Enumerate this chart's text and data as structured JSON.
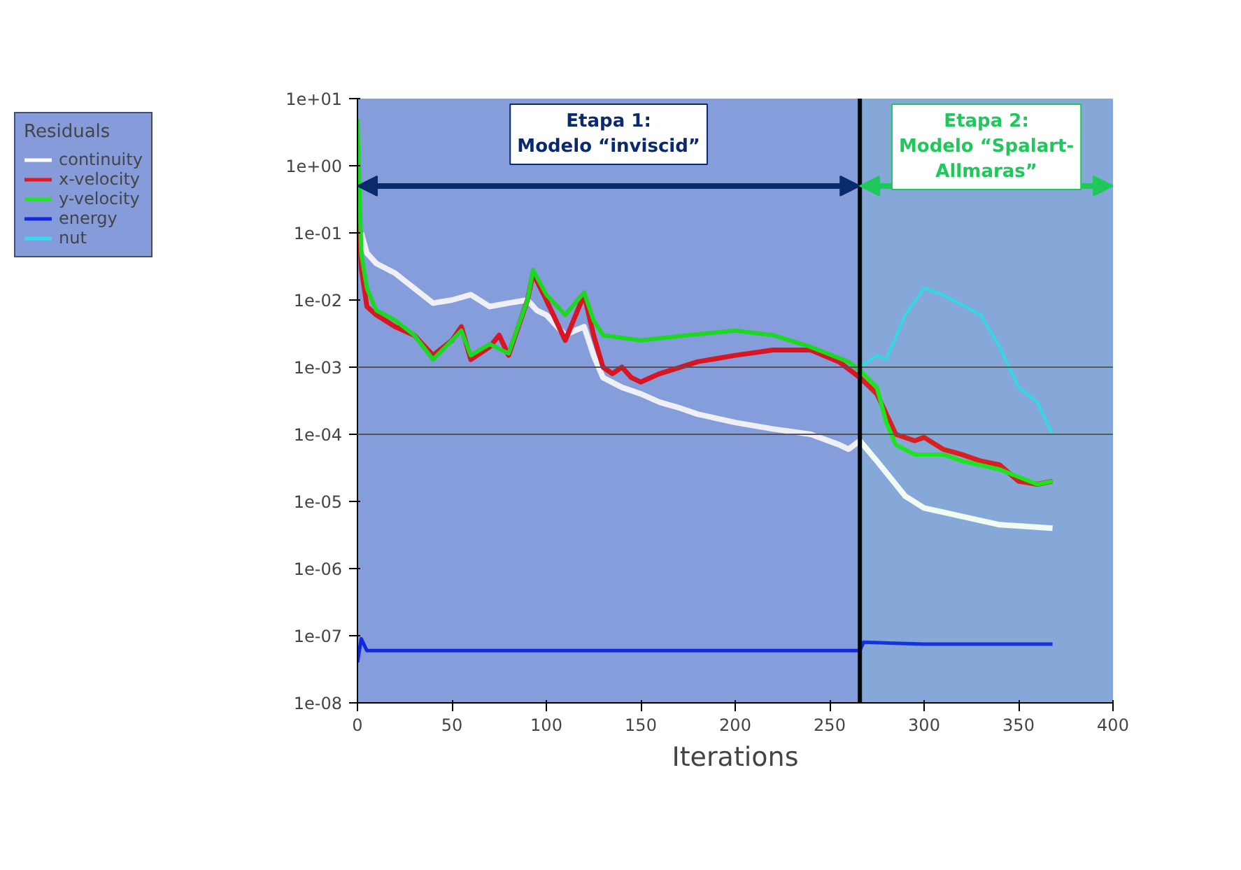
{
  "chart_data": {
    "type": "line",
    "xlabel": "Iterations",
    "legend_title": "Residuals",
    "legend": "top left",
    "log": "y",
    "grid": false,
    "xlim": [
      0,
      400
    ],
    "xticks": [
      0,
      50,
      100,
      150,
      200,
      250,
      300,
      350,
      400
    ],
    "ylim": [
      1e-08,
      10
    ],
    "yticks": [
      {
        "value": 1e-08,
        "label": "1e-08"
      },
      {
        "value": 1e-07,
        "label": "1e-07"
      },
      {
        "value": 1e-06,
        "label": "1e-06"
      },
      {
        "value": 1e-05,
        "label": "1e-05"
      },
      {
        "value": 0.0001,
        "label": "1e-04"
      },
      {
        "value": 0.001,
        "label": "1e-03"
      },
      {
        "value": 0.01,
        "label": "1e-02"
      },
      {
        "value": 0.1,
        "label": "1e-01"
      },
      {
        "value": 1,
        "label": "1e+00"
      },
      {
        "value": 10,
        "label": "1e+01"
      }
    ],
    "series": [
      {
        "name": "continuity",
        "color": "#ffffff",
        "x": [
          2,
          5,
          10,
          20,
          30,
          40,
          50,
          60,
          70,
          80,
          90,
          95,
          100,
          110,
          115,
          120,
          125,
          130,
          140,
          150,
          160,
          170,
          180,
          200,
          220,
          240,
          255,
          260,
          266,
          275,
          290,
          300,
          320,
          340,
          368
        ],
        "values": [
          0.1,
          0.05,
          0.035,
          0.025,
          0.015,
          0.009,
          0.01,
          0.012,
          0.008,
          0.009,
          0.01,
          0.007,
          0.006,
          0.003,
          0.0035,
          0.004,
          0.0015,
          0.0007,
          0.0005,
          0.0004,
          0.0003,
          0.00025,
          0.0002,
          0.00015,
          0.00012,
          0.0001,
          7e-05,
          6e-05,
          8e-05,
          4e-05,
          1.2e-05,
          8e-06,
          6e-06,
          4.5e-06,
          4e-06
        ]
      },
      {
        "name": "x-velocity",
        "color": "#e8141e",
        "x": [
          0,
          2,
          5,
          10,
          20,
          30,
          40,
          50,
          55,
          60,
          70,
          75,
          80,
          90,
          93,
          100,
          110,
          120,
          125,
          130,
          135,
          140,
          145,
          150,
          160,
          180,
          200,
          220,
          240,
          255,
          266,
          275,
          280,
          285,
          295,
          300,
          310,
          320,
          330,
          340,
          350,
          360,
          368
        ],
        "values": [
          1,
          0.03,
          0.008,
          0.006,
          0.004,
          0.003,
          0.0015,
          0.0025,
          0.004,
          0.0013,
          0.002,
          0.003,
          0.0015,
          0.01,
          0.025,
          0.01,
          0.0025,
          0.012,
          0.003,
          0.001,
          0.0008,
          0.001,
          0.0007,
          0.0006,
          0.0008,
          0.0012,
          0.0015,
          0.0018,
          0.0018,
          0.0012,
          0.0007,
          0.0004,
          0.0002,
          0.0001,
          8e-05,
          9e-05,
          6e-05,
          5e-05,
          4e-05,
          3.5e-05,
          2e-05,
          1.8e-05,
          2e-05
        ]
      },
      {
        "name": "y-velocity",
        "color": "#1ee61e",
        "x": [
          0,
          2,
          5,
          10,
          20,
          30,
          40,
          50,
          55,
          60,
          70,
          80,
          90,
          93,
          100,
          110,
          120,
          125,
          130,
          150,
          175,
          200,
          220,
          240,
          260,
          266,
          275,
          280,
          285,
          295,
          310,
          320,
          340,
          360,
          368
        ],
        "values": [
          5,
          0.05,
          0.015,
          0.007,
          0.005,
          0.003,
          0.0013,
          0.0025,
          0.0035,
          0.0015,
          0.0022,
          0.0016,
          0.01,
          0.028,
          0.012,
          0.006,
          0.013,
          0.005,
          0.003,
          0.0025,
          0.003,
          0.0035,
          0.003,
          0.002,
          0.0012,
          0.0009,
          0.0005,
          0.00015,
          7e-05,
          5e-05,
          5e-05,
          4e-05,
          3e-05,
          1.8e-05,
          2e-05
        ]
      },
      {
        "name": "energy",
        "color": "#1428e6",
        "x": [
          0,
          2,
          5,
          50,
          100,
          150,
          200,
          266,
          268,
          300,
          368
        ],
        "values": [
          4e-08,
          9e-08,
          6e-08,
          6e-08,
          6e-08,
          6e-08,
          6e-08,
          6e-08,
          8e-08,
          7.5e-08,
          7.5e-08
        ]
      },
      {
        "name": "nut",
        "color": "#32dcf0",
        "x": [
          266,
          275,
          280,
          290,
          300,
          310,
          330,
          340,
          350,
          360,
          368
        ],
        "values": [
          0.001,
          0.0015,
          0.0013,
          0.006,
          0.015,
          0.012,
          0.006,
          0.002,
          0.0005,
          0.0003,
          0.0001
        ]
      }
    ],
    "ref_lines": [
      {
        "axis": "y",
        "value": 0.001,
        "color": "#555555"
      },
      {
        "axis": "y",
        "value": 0.0001,
        "color": "#555555"
      },
      {
        "axis": "x",
        "value": 266,
        "color": "#000000"
      }
    ],
    "bands": [
      {
        "axis": "x",
        "from": 0,
        "to": 266,
        "label": "Etapa 1:\nModelo “inviscid”",
        "color": "#0a2a6e"
      },
      {
        "axis": "x",
        "from": 266,
        "to": 400,
        "label": "Etapa 2:\nModelo “Spalart-\nAllmaras”",
        "color": "#1ec85a"
      }
    ]
  }
}
